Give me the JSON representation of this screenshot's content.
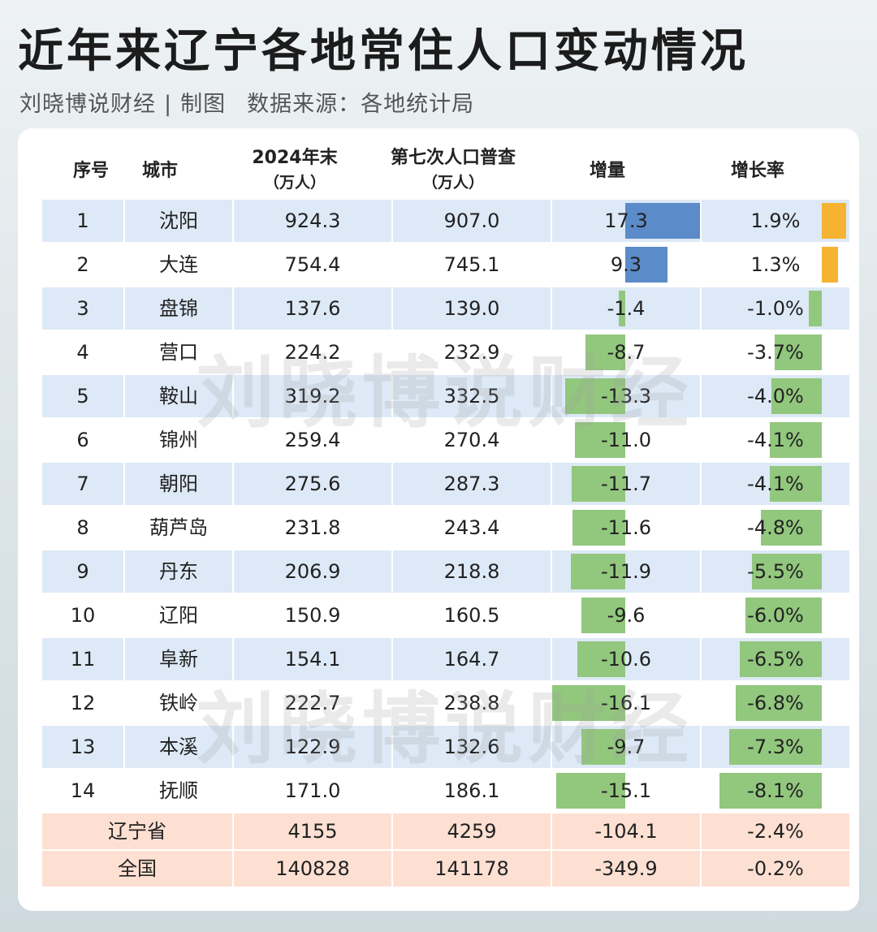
{
  "title": "近年来辽宁各地常住人口变动情况",
  "subtitle": {
    "author": "刘晓博说财经",
    "separator": "|",
    "tag": "制图",
    "source": "数据来源：各地统计局"
  },
  "watermark": "刘晓博说财经",
  "colors": {
    "row_alt": "#dde9f6",
    "summary_row": "#fde0d2",
    "bar_positive_increment": "#5b8bc9",
    "bar_positive_rate": "#f6b332",
    "bar_negative": "#92c77e"
  },
  "chart_data": {
    "type": "table",
    "columns": [
      {
        "label": "序号",
        "unit": ""
      },
      {
        "label": "城市",
        "unit": ""
      },
      {
        "label": "2024年末",
        "unit": "（万人）"
      },
      {
        "label": "第七次人口普查",
        "unit": "（万人）"
      },
      {
        "label": "增量",
        "unit": ""
      },
      {
        "label": "增长率",
        "unit": ""
      }
    ],
    "rows": [
      {
        "rank": "1",
        "city": "沈阳",
        "pop_2024": "924.3",
        "pop_census7": "907.0",
        "increment": 17.3,
        "increment_label": "17.3",
        "rate": 1.9,
        "rate_label": "1.9%"
      },
      {
        "rank": "2",
        "city": "大连",
        "pop_2024": "754.4",
        "pop_census7": "745.1",
        "increment": 9.3,
        "increment_label": "9.3",
        "rate": 1.3,
        "rate_label": "1.3%"
      },
      {
        "rank": "3",
        "city": "盘锦",
        "pop_2024": "137.6",
        "pop_census7": "139.0",
        "increment": -1.4,
        "increment_label": "-1.4",
        "rate": -1.0,
        "rate_label": "-1.0%"
      },
      {
        "rank": "4",
        "city": "营口",
        "pop_2024": "224.2",
        "pop_census7": "232.9",
        "increment": -8.7,
        "increment_label": "-8.7",
        "rate": -3.7,
        "rate_label": "-3.7%"
      },
      {
        "rank": "5",
        "city": "鞍山",
        "pop_2024": "319.2",
        "pop_census7": "332.5",
        "increment": -13.3,
        "increment_label": "-13.3",
        "rate": -4.0,
        "rate_label": "-4.0%"
      },
      {
        "rank": "6",
        "city": "锦州",
        "pop_2024": "259.4",
        "pop_census7": "270.4",
        "increment": -11.0,
        "increment_label": "-11.0",
        "rate": -4.1,
        "rate_label": "-4.1%"
      },
      {
        "rank": "7",
        "city": "朝阳",
        "pop_2024": "275.6",
        "pop_census7": "287.3",
        "increment": -11.7,
        "increment_label": "-11.7",
        "rate": -4.1,
        "rate_label": "-4.1%"
      },
      {
        "rank": "8",
        "city": "葫芦岛",
        "pop_2024": "231.8",
        "pop_census7": "243.4",
        "increment": -11.6,
        "increment_label": "-11.6",
        "rate": -4.8,
        "rate_label": "-4.8%"
      },
      {
        "rank": "9",
        "city": "丹东",
        "pop_2024": "206.9",
        "pop_census7": "218.8",
        "increment": -11.9,
        "increment_label": "-11.9",
        "rate": -5.5,
        "rate_label": "-5.5%"
      },
      {
        "rank": "10",
        "city": "辽阳",
        "pop_2024": "150.9",
        "pop_census7": "160.5",
        "increment": -9.6,
        "increment_label": "-9.6",
        "rate": -6.0,
        "rate_label": "-6.0%"
      },
      {
        "rank": "11",
        "city": "阜新",
        "pop_2024": "154.1",
        "pop_census7": "164.7",
        "increment": -10.6,
        "increment_label": "-10.6",
        "rate": -6.5,
        "rate_label": "-6.5%"
      },
      {
        "rank": "12",
        "city": "铁岭",
        "pop_2024": "222.7",
        "pop_census7": "238.8",
        "increment": -16.1,
        "increment_label": "-16.1",
        "rate": -6.8,
        "rate_label": "-6.8%"
      },
      {
        "rank": "13",
        "city": "本溪",
        "pop_2024": "122.9",
        "pop_census7": "132.6",
        "increment": -9.7,
        "increment_label": "-9.7",
        "rate": -7.3,
        "rate_label": "-7.3%"
      },
      {
        "rank": "14",
        "city": "抚顺",
        "pop_2024": "171.0",
        "pop_census7": "186.1",
        "increment": -15.1,
        "increment_label": "-15.1",
        "rate": -8.1,
        "rate_label": "-8.1%"
      }
    ],
    "summary_rows": [
      {
        "name": "辽宁省",
        "pop_2024": "4155",
        "pop_census7": "4259",
        "increment": "-104.1",
        "rate": "-2.4%"
      },
      {
        "name": "全国",
        "pop_2024": "140828",
        "pop_census7": "141178",
        "increment": "-349.9",
        "rate": "-0.2%"
      }
    ]
  }
}
